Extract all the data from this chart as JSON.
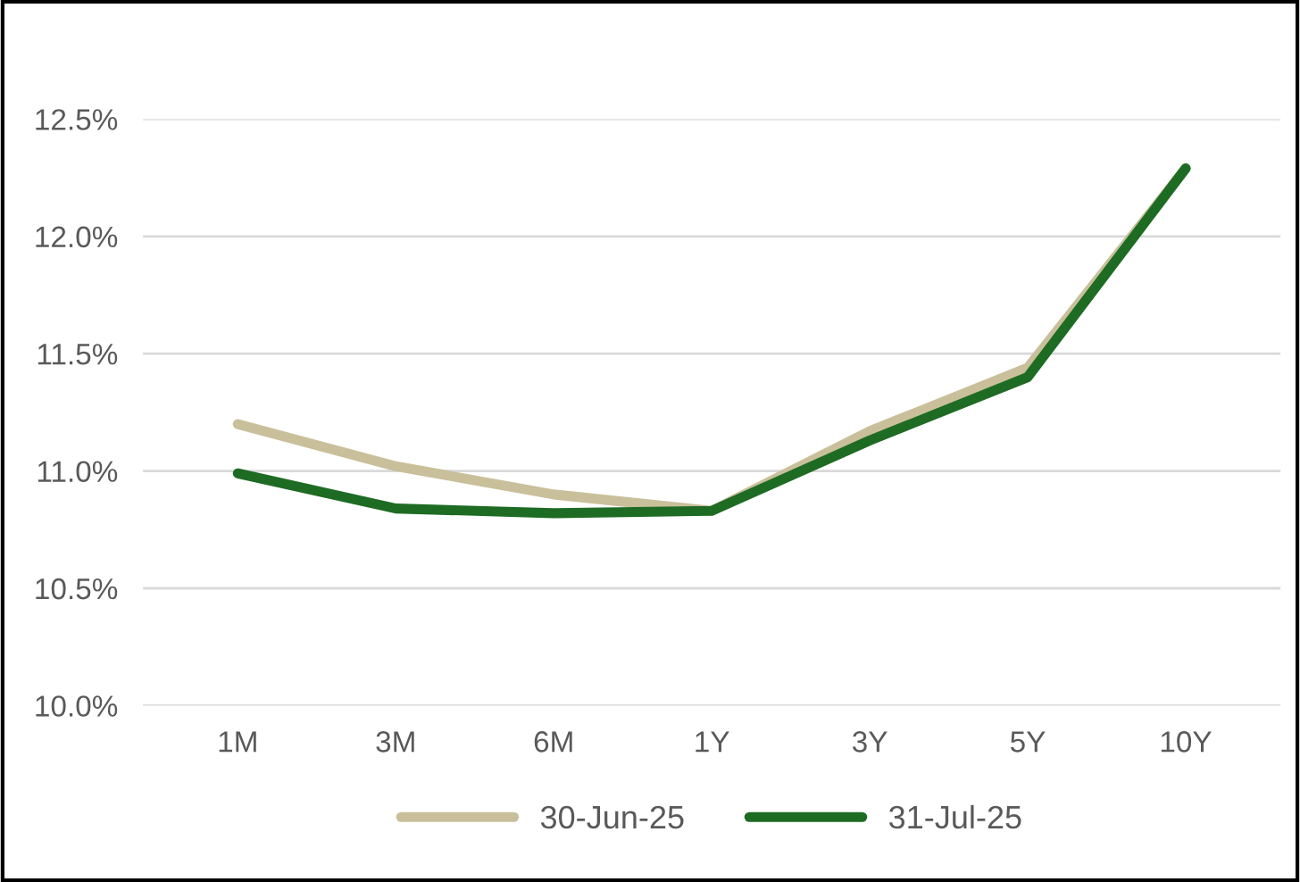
{
  "chart_data": {
    "type": "line",
    "categories": [
      "1M",
      "3M",
      "6M",
      "1Y",
      "3Y",
      "5Y",
      "10Y"
    ],
    "series": [
      {
        "name": "30-Jun-25",
        "color": "#c9c09b",
        "values": [
          11.2,
          11.02,
          10.9,
          10.83,
          11.17,
          11.44,
          12.29
        ]
      },
      {
        "name": "31-Jul-25",
        "color": "#1e6b24",
        "values": [
          10.99,
          10.84,
          10.82,
          10.83,
          11.13,
          11.4,
          12.29
        ]
      }
    ],
    "ylim": [
      10.0,
      12.5
    ],
    "yticks": [
      {
        "value": 10.0,
        "label": "10.0%"
      },
      {
        "value": 10.5,
        "label": "10.5%"
      },
      {
        "value": 11.0,
        "label": "11.0%"
      },
      {
        "value": 11.5,
        "label": "11.5%"
      },
      {
        "value": 12.0,
        "label": "12.0%"
      },
      {
        "value": 12.5,
        "label": "12.5%"
      }
    ],
    "grid": "y",
    "legend": "bottom",
    "marker": "none",
    "line_style": "solid"
  }
}
